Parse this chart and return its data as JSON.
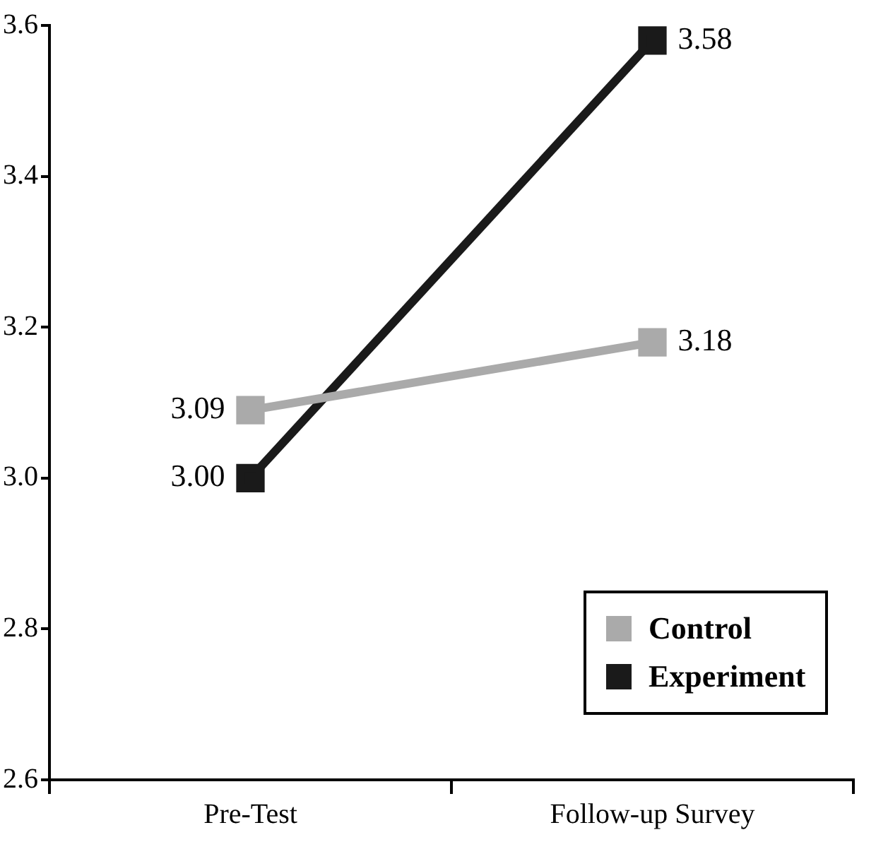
{
  "chart_data": {
    "type": "line",
    "categories": [
      "Pre-Test",
      "Follow-up Survey"
    ],
    "series": [
      {
        "name": "Control",
        "color": "#aaaaaa",
        "values": [
          3.09,
          3.18
        ],
        "value_labels": [
          "3.09",
          "3.18"
        ]
      },
      {
        "name": "Experiment",
        "color": "#1a1a1a",
        "values": [
          3.0,
          3.58
        ],
        "value_labels": [
          "3.00",
          "3.58"
        ]
      }
    ],
    "ylim": [
      2.6,
      3.6
    ],
    "yticks": [
      {
        "value": 2.6,
        "label": "2.6"
      },
      {
        "value": 2.8,
        "label": "2.8"
      },
      {
        "value": 3.0,
        "label": "3.0"
      },
      {
        "value": 3.2,
        "label": "3.2"
      },
      {
        "value": 3.4,
        "label": "3.4"
      },
      {
        "value": 3.6,
        "label": "3.6"
      }
    ],
    "legend": "bottom right",
    "marker": "square",
    "grid": false
  }
}
